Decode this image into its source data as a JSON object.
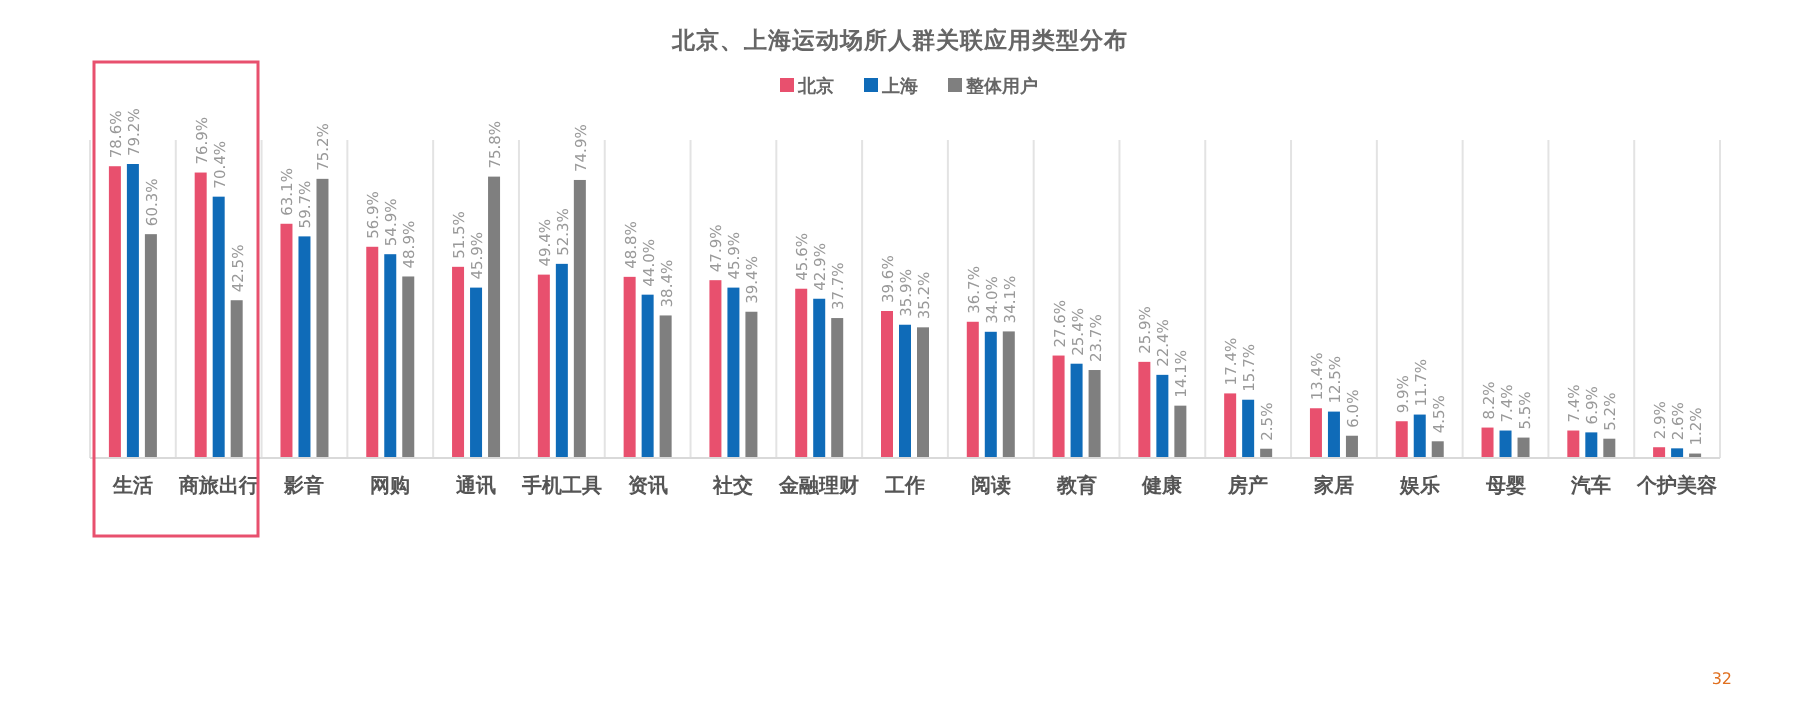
{
  "chart_data": {
    "type": "bar",
    "title": "北京、上海运动场所人群关联应用类型分布",
    "categories": [
      "生活",
      "商旅出行",
      "影音",
      "网购",
      "通讯",
      "手机工具",
      "资讯",
      "社交",
      "金融理财",
      "工作",
      "阅读",
      "教育",
      "健康",
      "房产",
      "家居",
      "娱乐",
      "母婴",
      "汽车",
      "个护美容"
    ],
    "series": [
      {
        "name": "北京",
        "color": "#e8506e",
        "values": [
          78.6,
          76.9,
          63.1,
          56.9,
          51.5,
          49.4,
          48.8,
          47.9,
          45.6,
          39.6,
          36.7,
          27.6,
          25.9,
          17.4,
          13.4,
          9.9,
          8.2,
          7.4,
          2.9
        ],
        "value_labels": [
          "78.6%",
          "76.9%",
          "63.1%",
          "56.9%",
          "51.5%",
          "49.4%",
          "48.8%",
          "47.9%",
          "45.6%",
          "39.6%",
          "36.7%",
          "27.6%",
          "25.9%",
          "17.4%",
          "13.4%",
          "9.9%",
          "8.2%",
          "7.4%",
          "2.9%"
        ]
      },
      {
        "name": "上海",
        "color": "#0f6bb8",
        "values": [
          79.2,
          70.4,
          59.7,
          54.9,
          45.9,
          52.3,
          44.0,
          45.9,
          42.9,
          35.9,
          34.0,
          25.4,
          22.4,
          15.7,
          12.5,
          11.7,
          7.4,
          6.9,
          2.6
        ],
        "value_labels": [
          "79.2%",
          "70.4%",
          "59.7%",
          "54.9%",
          "45.9%",
          "52.3%",
          "44.0%",
          "45.9%",
          "42.9%",
          "35.9%",
          "34.0%",
          "25.4%",
          "22.4%",
          "15.7%",
          "12.5%",
          "11.7%",
          "7.4%",
          "6.9%",
          "2.6%"
        ]
      },
      {
        "name": "整体用户",
        "color": "#7f7f7f",
        "values": [
          60.3,
          42.5,
          75.2,
          48.9,
          75.8,
          74.9,
          38.4,
          39.4,
          37.7,
          35.2,
          34.1,
          23.7,
          14.1,
          2.5,
          6.0,
          4.5,
          5.5,
          5.2,
          1.2
        ],
        "value_labels": [
          "60.3%",
          "42.5%",
          "75.2%",
          "48.9%",
          "75.8%",
          "74.9%",
          "38.4%",
          "39.4%",
          "37.7%",
          "35.2%",
          "34.1%",
          "23.7%",
          "14.1%",
          "2.5%",
          "6.0%",
          "4.5%",
          "5.5%",
          "5.2%",
          "1.2%"
        ]
      }
    ],
    "legend": "top",
    "grid": "x",
    "annotations": [
      "32"
    ]
  }
}
